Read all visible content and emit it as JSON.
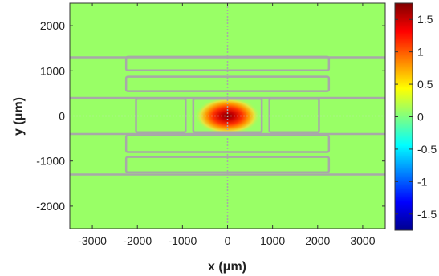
{
  "chart_data": {
    "type": "heatmap",
    "title": "",
    "xlabel": "x (μm)",
    "ylabel": "y (μm)",
    "xlim": [
      -3500,
      3500
    ],
    "ylim": [
      -2500,
      2500
    ],
    "x_ticks": [
      "-3000",
      "-2000",
      "-1000",
      "0",
      "1000",
      "2000",
      "3000"
    ],
    "y_ticks": [
      "2000",
      "1000",
      "0",
      "-1000",
      "-2000"
    ],
    "colorbar": {
      "range": [
        -1.75,
        1.75
      ],
      "colormap": "jet",
      "tick_values": [
        1.5,
        1,
        0.5,
        0,
        -0.5,
        -1,
        -1.5
      ],
      "tick_labels": [
        "1.5",
        "1",
        "0.5",
        "0",
        "-0.5",
        "-1",
        "-1.5"
      ]
    },
    "field": {
      "background_value": 0,
      "peak_value": 1.75,
      "peak_center": [
        0,
        0
      ],
      "peak_sigma": [
        330,
        130
      ]
    },
    "outline_color": "#a8a8a8",
    "outlines": {
      "hlines_y": [
        1300,
        400,
        -400,
        -1300
      ],
      "vlines_x": [
        0
      ],
      "rects": [
        [
          -2250,
          1010,
          2250,
          1310
        ],
        [
          -2250,
          550,
          2250,
          870
        ],
        [
          -2250,
          -800,
          2250,
          -430
        ],
        [
          -2250,
          -1250,
          2250,
          -910
        ],
        [
          -2250,
          -400,
          -2250,
          400
        ],
        [
          -2030,
          -360,
          -930,
          380
        ],
        [
          -760,
          -360,
          760,
          380
        ],
        [
          930,
          -360,
          2030,
          380
        ],
        [
          2250,
          -400,
          2250,
          400
        ]
      ]
    }
  }
}
